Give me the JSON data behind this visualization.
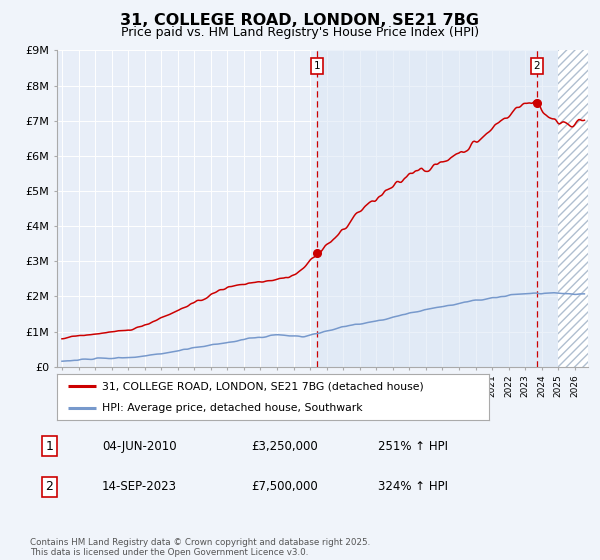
{
  "title": "31, COLLEGE ROAD, LONDON, SE21 7BG",
  "subtitle": "Price paid vs. HM Land Registry's House Price Index (HPI)",
  "title_fontsize": 12,
  "subtitle_fontsize": 9,
  "ylim": [
    0,
    9000000
  ],
  "yticks": [
    0,
    1000000,
    2000000,
    3000000,
    4000000,
    5000000,
    6000000,
    7000000,
    8000000,
    9000000
  ],
  "ytick_labels": [
    "£0",
    "£1M",
    "£2M",
    "£3M",
    "£4M",
    "£5M",
    "£6M",
    "£7M",
    "£8M",
    "£9M"
  ],
  "xlim_start": 1994.7,
  "xlim_end": 2026.8,
  "background_color": "#f0f4fa",
  "plot_bg_color": "#e8eef8",
  "grid_color": "#ffffff",
  "red_line_color": "#cc0000",
  "blue_line_color": "#7799cc",
  "dashed_line_color": "#cc0000",
  "marker_color": "#cc0000",
  "sale1_date": 2010.42,
  "sale1_price": 3250000,
  "sale1_label": "1",
  "sale2_date": 2023.71,
  "sale2_price": 7500000,
  "sale2_label": "2",
  "legend_red_label": "31, COLLEGE ROAD, LONDON, SE21 7BG (detached house)",
  "legend_blue_label": "HPI: Average price, detached house, Southwark",
  "table_row1": [
    "1",
    "04-JUN-2010",
    "£3,250,000",
    "251% ↑ HPI"
  ],
  "table_row2": [
    "2",
    "14-SEP-2023",
    "£7,500,000",
    "324% ↑ HPI"
  ],
  "footnote": "Contains HM Land Registry data © Crown copyright and database right 2025.\nThis data is licensed under the Open Government Licence v3.0.",
  "future_shade_start": 2025.0,
  "shade_after_sale1_color": "#dce8f5"
}
